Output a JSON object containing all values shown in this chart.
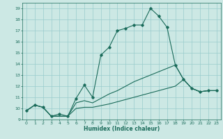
{
  "xlabel": "Humidex (Indice chaleur)",
  "bg_color": "#cce8e4",
  "line_color": "#1a6b5a",
  "grid_color": "#99cccc",
  "xlim": [
    -0.5,
    23.5
  ],
  "ylim": [
    9,
    19.5
  ],
  "yticks": [
    9,
    10,
    11,
    12,
    13,
    14,
    15,
    16,
    17,
    18,
    19
  ],
  "xticks": [
    0,
    1,
    2,
    3,
    4,
    5,
    6,
    7,
    8,
    9,
    10,
    11,
    12,
    13,
    14,
    15,
    16,
    17,
    18,
    19,
    20,
    21,
    22,
    23
  ],
  "line1_x": [
    0,
    1,
    2,
    3,
    4,
    5,
    6,
    7,
    8,
    9,
    10,
    11,
    12,
    13,
    14,
    15,
    16,
    17,
    18,
    19,
    20,
    21,
    22,
    23
  ],
  "line1_y": [
    9.8,
    10.3,
    10.1,
    9.3,
    9.5,
    9.3,
    10.9,
    12.1,
    11.0,
    14.8,
    15.5,
    17.0,
    17.2,
    17.5,
    17.5,
    19.0,
    18.3,
    17.3,
    13.9,
    12.6,
    11.8,
    11.5,
    11.6,
    11.6
  ],
  "line2_x": [
    0,
    1,
    2,
    3,
    5,
    6,
    7,
    8,
    10,
    11,
    12,
    13,
    14,
    15,
    16,
    17,
    18,
    19,
    20,
    21,
    22,
    23
  ],
  "line2_y": [
    9.8,
    10.3,
    10.1,
    9.3,
    9.3,
    10.5,
    10.7,
    10.5,
    11.3,
    11.6,
    12.0,
    12.4,
    12.7,
    13.0,
    13.3,
    13.6,
    13.9,
    12.6,
    11.8,
    11.5,
    11.6,
    11.6
  ],
  "line3_x": [
    0,
    1,
    2,
    3,
    5,
    6,
    7,
    8,
    10,
    11,
    12,
    13,
    14,
    15,
    16,
    17,
    18,
    19,
    20,
    21,
    22,
    23
  ],
  "line3_y": [
    9.8,
    10.3,
    10.1,
    9.3,
    9.3,
    10.0,
    10.1,
    10.1,
    10.4,
    10.6,
    10.8,
    11.0,
    11.2,
    11.4,
    11.6,
    11.8,
    12.0,
    12.6,
    11.8,
    11.5,
    11.6,
    11.6
  ]
}
